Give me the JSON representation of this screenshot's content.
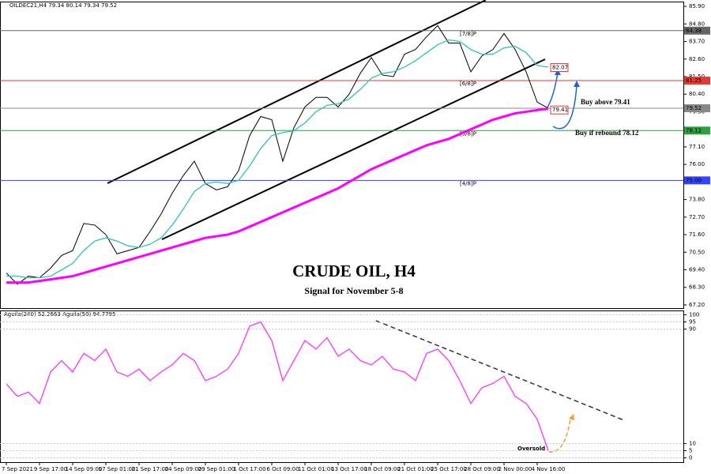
{
  "header": "OILDEC21,H4 79.34 80.14 79.34 79.52",
  "chart_data": [
    {
      "type": "line",
      "title": "CRUDE OIL, H4",
      "subtitle": "Signal for November 5-8",
      "ylim": [
        67.0,
        86.2
      ],
      "yticks": [
        {
          "value": 85.9,
          "label": "85.90"
        },
        {
          "value": 84.8,
          "label": "84.80"
        },
        {
          "value": 83.7,
          "label": "83.70"
        },
        {
          "value": 82.6,
          "label": "82.60"
        },
        {
          "value": 81.5,
          "label": "81.50"
        },
        {
          "value": 80.4,
          "label": "80.40"
        },
        {
          "value": 79.3,
          "label": "79.30"
        },
        {
          "value": 77.1,
          "label": "77.10"
        },
        {
          "value": 76.0,
          "label": "76.00"
        },
        {
          "value": 73.8,
          "label": "73.80"
        },
        {
          "value": 72.7,
          "label": "72.70"
        },
        {
          "value": 71.6,
          "label": "71.60"
        },
        {
          "value": 70.5,
          "label": "70.50"
        },
        {
          "value": 69.4,
          "label": "69.40"
        },
        {
          "value": 68.3,
          "label": "68.30"
        },
        {
          "value": 67.2,
          "label": "67.20"
        }
      ],
      "series": [
        {
          "color": "#000000",
          "values": [
            69.2,
            68.5,
            69.0,
            68.9,
            69.5,
            70.3,
            70.6,
            72.3,
            72.2,
            71.6,
            70.4,
            70.6,
            70.8,
            71.8,
            72.9,
            74.2,
            75.3,
            76.2,
            74.8,
            74.4,
            74.6,
            75.6,
            77.8,
            79.0,
            78.8,
            76.2,
            78.3,
            79.6,
            80.2,
            80.2,
            79.6,
            80.4,
            81.7,
            82.7,
            81.6,
            81.5,
            82.9,
            83.2,
            84.0,
            84.7,
            83.6,
            83.6,
            81.8,
            82.8,
            83.2,
            84.2,
            83.2,
            81.8,
            79.9,
            79.52
          ]
        },
        {
          "color": "#2ec4b6",
          "values": [
            69.0,
            69.0,
            68.9,
            68.9,
            69.0,
            69.4,
            69.8,
            70.6,
            71.2,
            71.4,
            71.2,
            70.9,
            70.8,
            71.0,
            71.4,
            72.2,
            73.2,
            74.3,
            74.8,
            74.9,
            74.8,
            75.0,
            75.9,
            77.0,
            77.8,
            78.0,
            78.1,
            78.6,
            79.3,
            79.7,
            79.8,
            80.1,
            80.7,
            81.4,
            81.7,
            81.8,
            82.1,
            82.5,
            83.0,
            83.5,
            83.8,
            83.7,
            83.2,
            82.9,
            82.9,
            83.3,
            83.4,
            83.0,
            82.2,
            82.1
          ]
        },
        {
          "color": "#ff00ff",
          "values": [
            68.6,
            68.6,
            68.6,
            68.7,
            68.8,
            68.9,
            69.0,
            69.2,
            69.4,
            69.6,
            69.8,
            70.0,
            70.2,
            70.4,
            70.6,
            70.8,
            71.0,
            71.2,
            71.4,
            71.5,
            71.6,
            71.8,
            72.1,
            72.4,
            72.7,
            73.0,
            73.3,
            73.6,
            73.9,
            74.2,
            74.5,
            74.9,
            75.3,
            75.7,
            76.0,
            76.3,
            76.6,
            76.9,
            77.2,
            77.4,
            77.6,
            77.9,
            78.2,
            78.5,
            78.8,
            79.0,
            79.2,
            79.3,
            79.4,
            79.5
          ]
        }
      ],
      "levels": [
        {
          "value": 84.38,
          "label": "84.38",
          "color": "#666666",
          "murray": "[7/8]P"
        },
        {
          "value": 81.25,
          "label": "81.25",
          "color": "#e53935",
          "murray": "[6/8]P"
        },
        {
          "value": 79.52,
          "label": "79.52",
          "color": "#888888"
        },
        {
          "value": 78.12,
          "label": "78.12",
          "color": "#2e9e3e",
          "murray": "[5/8]P"
        },
        {
          "value": 75.0,
          "label": "75.00",
          "color": "#3344ff",
          "murray": "[4/8]P"
        }
      ],
      "price_labels": [
        {
          "value": 82.07,
          "label": "82.07"
        },
        {
          "value": 79.41,
          "label": "79.41"
        }
      ],
      "annotations": [
        "Buy  above 79.41",
        "Buy  if rebound 78.12"
      ]
    },
    {
      "type": "line",
      "title": "Aguila(240) 52.2663 Aguila(50) 94.7795",
      "ylim": [
        -3,
        103
      ],
      "yticks": [
        0,
        5,
        10,
        90,
        95,
        100
      ],
      "categories": [
        "7 Sep 2021",
        null,
        null,
        "9 Sep 17:00",
        null,
        null,
        "14 Sep 09:00",
        null,
        null,
        "17 Sep 01:00",
        null,
        null,
        "21 Sep 17:00",
        null,
        null,
        "24 Sep 09:00",
        null,
        null,
        "29 Sep 01:00",
        null,
        null,
        "1 Oct 17:00",
        null,
        null,
        "6 Oct 09:00",
        null,
        null,
        "11 Oct 01:00",
        null,
        null,
        "13 Oct 17:00",
        null,
        null,
        "18 Oct 09:00",
        null,
        null,
        "21 Oct 01:00",
        null,
        null,
        "25 Oct 17:00",
        null,
        null,
        "28 Oct 09:00",
        null,
        null,
        "2 Nov 00:00",
        null,
        null,
        "4 Nov 16:00",
        null
      ],
      "series": [
        {
          "color": "#ff33ff",
          "values": [
            51.6,
            43,
            46,
            38,
            60,
            68,
            60,
            73,
            68,
            76,
            60,
            57,
            62,
            54,
            60,
            65,
            73,
            68,
            54,
            57,
            62,
            73,
            92,
            95,
            82,
            54,
            68,
            82,
            76,
            84,
            71,
            76,
            68,
            65,
            71,
            62,
            60,
            54,
            73,
            76,
            68,
            54,
            38,
            49,
            52,
            57,
            43,
            38,
            27,
            5
          ]
        }
      ],
      "annotations": [
        "Oversold"
      ]
    }
  ]
}
